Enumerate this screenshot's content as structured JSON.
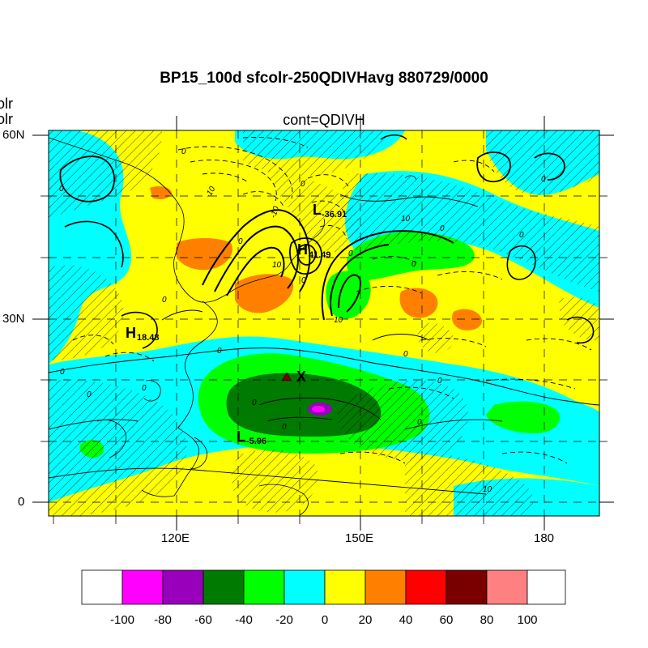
{
  "title": "BP15_100d sfcolr-250QDIVHavg  880729/0000",
  "subtitle": "cont=QDIVH",
  "left_fragments": [
    "olr",
    "olr"
  ],
  "map": {
    "lat_labels": [
      "60N",
      "30N",
      "0"
    ],
    "lon_labels": [
      "120E",
      "150E",
      "180"
    ]
  },
  "annotations": {
    "pressure_labels": [
      {
        "letter": "L",
        "value": "-36.91"
      },
      {
        "letter": "H",
        "value": "41.49"
      },
      {
        "letter": "H",
        "value": "18.48"
      },
      {
        "letter": "L",
        "value": "-5.96"
      }
    ],
    "marker_label": "X",
    "contour_labels": [
      "0",
      "-10",
      "0",
      "-10",
      "0",
      "10",
      "0",
      "10",
      "0",
      "0",
      "10",
      "0",
      "0",
      "0",
      "0",
      "0",
      "0",
      "0",
      "0",
      "0",
      "0",
      "0",
      "0",
      "0",
      "0",
      "10"
    ]
  },
  "colorbar": {
    "labels": [
      "-100",
      "-80",
      "-60",
      "-40",
      "-20",
      "0",
      "20",
      "40",
      "60",
      "80",
      "100"
    ],
    "colors": [
      "#ffffff",
      "#ff00ff",
      "#9900bb",
      "#007a00",
      "#00ff00",
      "#00ffff",
      "#ffff00",
      "#ff8000",
      "#ff0000",
      "#7a0000",
      "#ff8080",
      "#ffffff"
    ]
  }
}
